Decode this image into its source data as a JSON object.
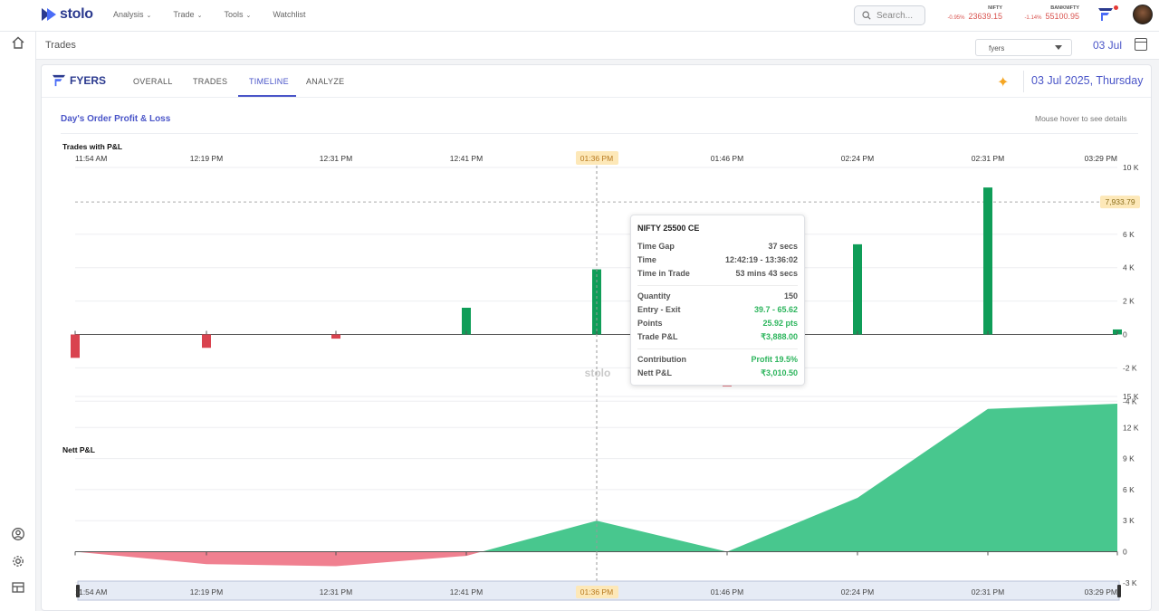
{
  "app": {
    "name": "stolo"
  },
  "nav": {
    "items": [
      "Analysis",
      "Trade",
      "Tools",
      "Watchlist"
    ]
  },
  "search": {
    "placeholder": "Search..."
  },
  "indices": [
    {
      "name": "NIFTY",
      "change": "-0.95%",
      "value": "23639.15"
    },
    {
      "name": "BANKNIFTY",
      "change": "-1.14%",
      "value": "55100.95"
    }
  ],
  "subbar": {
    "title": "Trades",
    "broker_select": "fyers",
    "date": "03 Jul"
  },
  "card": {
    "broker": "FYERS",
    "tabs": [
      "OVERALL",
      "TRADES",
      "TIMELINE",
      "ANALYZE"
    ],
    "active_tab": "TIMELINE",
    "date": "03 Jul 2025, Thursday",
    "section_title": "Day's Order Profit & Loss",
    "hover_hint": "Mouse hover to see details"
  },
  "chart_data": [
    {
      "type": "bar",
      "title": "Trades with P&L",
      "categories": [
        "11:54 AM",
        "12:19 PM",
        "12:31 PM",
        "12:41 PM",
        "01:36 PM",
        "01:46 PM",
        "02:24 PM",
        "02:31 PM",
        "03:29 PM"
      ],
      "values": [
        -1400,
        -800,
        -250,
        1600,
        3900,
        -3100,
        5400,
        8800,
        300
      ],
      "ylim": [
        -4000,
        10000
      ],
      "yticks": [
        "10 K",
        "6 K",
        "4 K",
        "2 K",
        "0",
        "-2 K",
        "-4 K"
      ],
      "max_line": "7,933.79",
      "highlight": "01:36 PM",
      "colors": {
        "positive": "#0f9d58",
        "negative": "#d9434f"
      }
    },
    {
      "type": "area",
      "title": "Nett P&L",
      "categories": [
        "11:54 AM",
        "12:19 PM",
        "12:31 PM",
        "12:41 PM",
        "01:36 PM",
        "01:46 PM",
        "02:24 PM",
        "02:31 PM",
        "03:29 PM"
      ],
      "values": [
        0,
        -1200,
        -1400,
        -400,
        3000,
        0,
        5200,
        13800,
        14300
      ],
      "ylim": [
        -3000,
        15000
      ],
      "yticks": [
        "15 K",
        "12 K",
        "9 K",
        "6 K",
        "3 K",
        "0",
        "-3 K"
      ],
      "colors": {
        "positive": "#48c78e",
        "negative": "#f08090"
      }
    }
  ],
  "watermark": "stolo",
  "tooltip": {
    "title": "NIFTY 25500 CE",
    "rows1": [
      [
        "Time Gap",
        "37 secs"
      ],
      [
        "Time",
        "12:42:19 - 13:36:02"
      ],
      [
        "Time in Trade",
        "53 mins 43 secs"
      ]
    ],
    "rows2": [
      [
        "Quantity",
        "150"
      ],
      [
        "Entry - Exit",
        "39.7 - 65.62"
      ],
      [
        "Points",
        "25.92 pts"
      ],
      [
        "Trade P&L",
        "₹3,888.00"
      ]
    ],
    "rows3": [
      [
        "Contribution",
        "Profit 19.5%"
      ],
      [
        "Nett P&L",
        "₹3,010.50"
      ]
    ]
  }
}
